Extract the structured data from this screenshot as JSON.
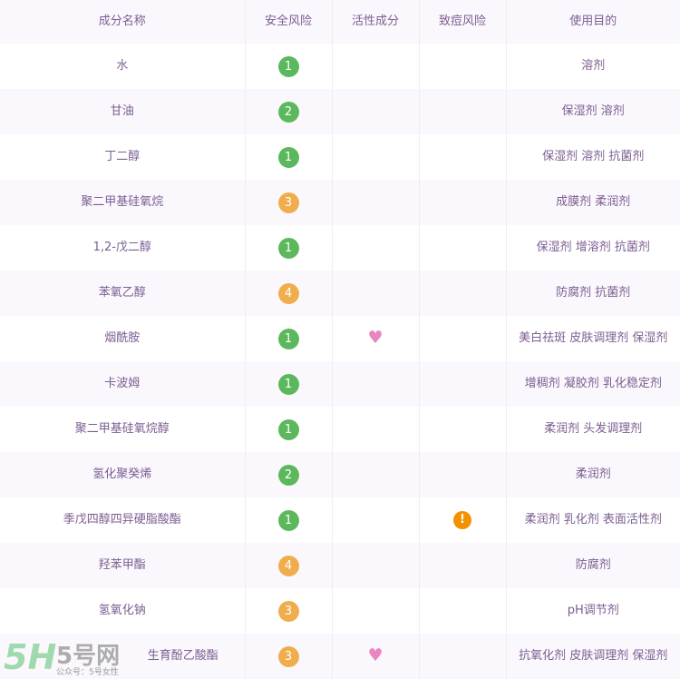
{
  "headers": [
    "成分名称",
    "安全风险",
    "活性成分",
    "致痘风险",
    "使用目的"
  ],
  "colors": {
    "risk_low": "#5cb85c",
    "risk_mid": "#f0ad4e",
    "heart": "#ea86bf",
    "warning": "#f39200"
  },
  "rows": [
    {
      "name": "水",
      "risk": "1",
      "active": false,
      "acne": false,
      "purpose": "溶剂"
    },
    {
      "name": "甘油",
      "risk": "2",
      "active": false,
      "acne": false,
      "purpose": "保湿剂 溶剂"
    },
    {
      "name": "丁二醇",
      "risk": "1",
      "active": false,
      "acne": false,
      "purpose": "保湿剂 溶剂 抗菌剂"
    },
    {
      "name": "聚二甲基硅氧烷",
      "risk": "3",
      "active": false,
      "acne": false,
      "purpose": "成膜剂 柔润剂"
    },
    {
      "name": "1,2-戊二醇",
      "risk": "1",
      "active": false,
      "acne": false,
      "purpose": "保湿剂 增溶剂 抗菌剂"
    },
    {
      "name": "苯氧乙醇",
      "risk": "4",
      "active": false,
      "acne": false,
      "purpose": "防腐剂 抗菌剂"
    },
    {
      "name": "烟酰胺",
      "risk": "1",
      "active": true,
      "acne": false,
      "purpose": "美白祛斑 皮肤调理剂 保湿剂"
    },
    {
      "name": "卡波姆",
      "risk": "1",
      "active": false,
      "acne": false,
      "purpose": "增稠剂 凝胶剂 乳化稳定剂"
    },
    {
      "name": "聚二甲基硅氧烷醇",
      "risk": "1",
      "active": false,
      "acne": false,
      "purpose": "柔润剂 头发调理剂"
    },
    {
      "name": "氢化聚癸烯",
      "risk": "2",
      "active": false,
      "acne": false,
      "purpose": "柔润剂"
    },
    {
      "name": "季戊四醇四异硬脂酸酯",
      "risk": "1",
      "active": false,
      "acne": true,
      "purpose": "柔润剂 乳化剂 表面活性剂"
    },
    {
      "name": "羟苯甲酯",
      "risk": "4",
      "active": false,
      "acne": false,
      "purpose": "防腐剂"
    },
    {
      "name": "氢氧化钠",
      "risk": "3",
      "active": false,
      "acne": false,
      "purpose": "pH调节剂"
    },
    {
      "name": "生育酚乙酸酯",
      "risk": "3",
      "active": true,
      "acne": false,
      "purpose": "抗氧化剂 皮肤调理剂 保湿剂"
    }
  ],
  "icons": {
    "active": "heart-icon",
    "acne": "exclamation-icon"
  },
  "watermark": {
    "logo": "5H",
    "brand": "5号网",
    "sub": "公众号：5号女性"
  }
}
